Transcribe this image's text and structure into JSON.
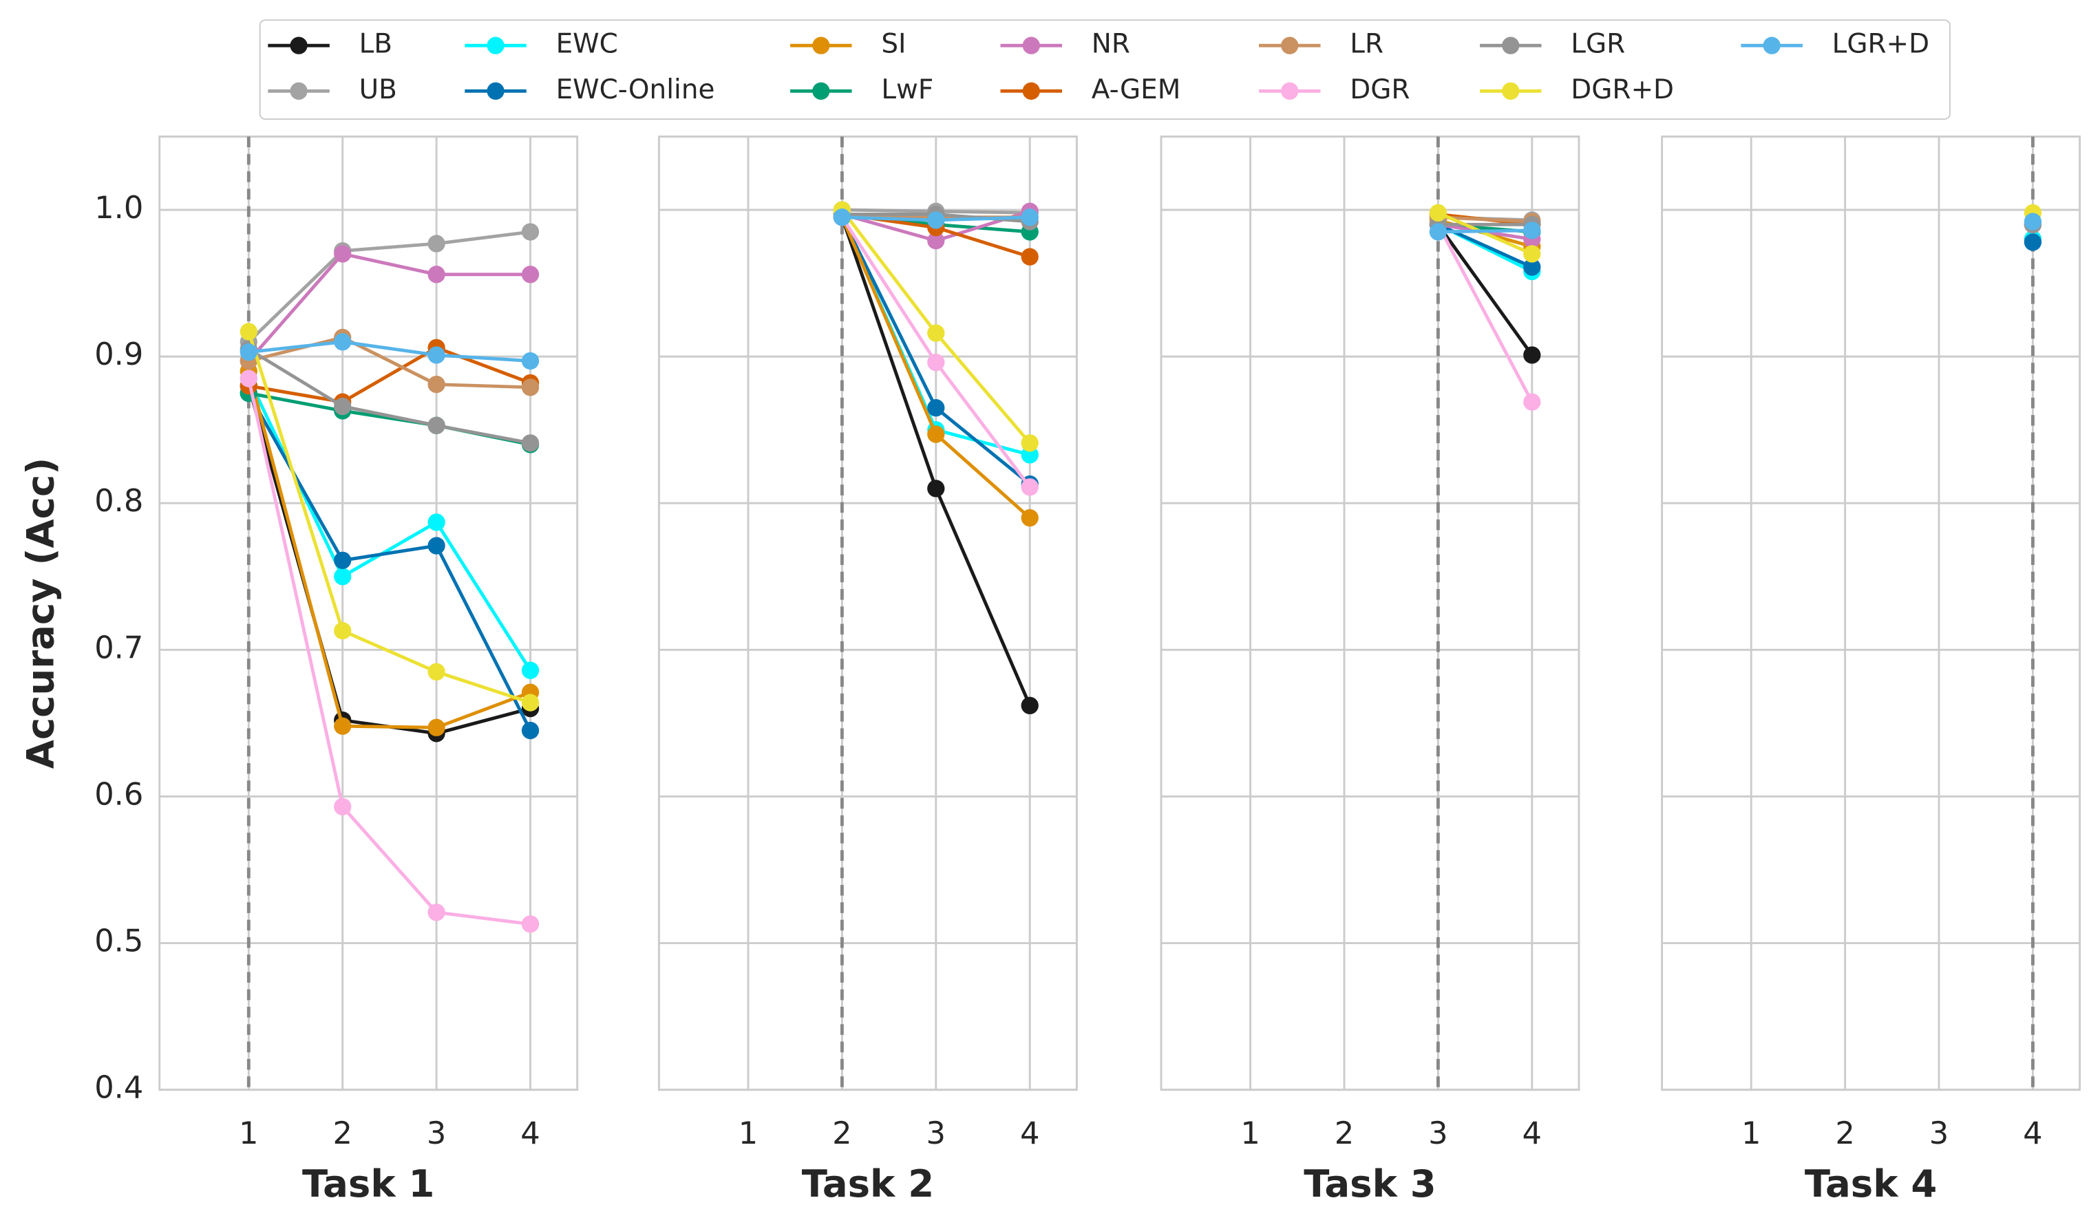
{
  "chart_data": [
    {
      "type": "line",
      "xlabel": "Task 1",
      "ylabel": "Accuracy (Acc)",
      "vline": 1,
      "grid": true,
      "x": [
        1,
        2,
        3,
        4
      ],
      "xlim": [
        0.05,
        4.5
      ],
      "xticks": [
        1,
        2,
        3,
        4
      ],
      "ylim": [
        0.4,
        1.05
      ],
      "yticks": [
        0.4,
        0.5,
        0.6,
        0.7,
        0.8,
        0.9,
        {
          "value": 1,
          "label": "1.0"
        }
      ],
      "series": [
        {
          "name": "LB",
          "color": "#1a1a1a",
          "values": [
            0.88,
            0.652,
            0.643,
            0.66
          ]
        },
        {
          "name": "UB",
          "color": "#a3a3a3",
          "values": [
            0.91,
            0.972,
            0.977,
            0.985
          ]
        },
        {
          "name": "EWC",
          "color": "#00f5ff",
          "values": [
            0.885,
            0.75,
            0.787,
            0.686
          ]
        },
        {
          "name": "EWC-Online",
          "color": "#0072b2",
          "values": [
            0.875,
            0.761,
            0.771,
            0.645
          ]
        },
        {
          "name": "SI",
          "color": "#de8f05",
          "values": [
            0.89,
            0.648,
            0.647,
            0.671
          ]
        },
        {
          "name": "LwF",
          "color": "#029e73",
          "values": [
            0.875,
            0.863,
            0.853,
            0.84
          ]
        },
        {
          "name": "NR",
          "color": "#cc78bc",
          "values": [
            0.897,
            0.97,
            0.956,
            0.956
          ]
        },
        {
          "name": "A-GEM",
          "color": "#d55e00",
          "values": [
            0.88,
            0.869,
            0.906,
            0.882
          ]
        },
        {
          "name": "LR",
          "color": "#ca9161",
          "values": [
            0.897,
            0.913,
            0.881,
            0.879
          ]
        },
        {
          "name": "DGR",
          "color": "#fbafe4",
          "values": [
            0.885,
            0.593,
            0.521,
            0.513
          ]
        },
        {
          "name": "LGR",
          "color": "#949494",
          "values": [
            0.905,
            0.866,
            0.853,
            0.841
          ]
        },
        {
          "name": "DGR+D",
          "color": "#ece133",
          "values": [
            0.917,
            0.713,
            0.685,
            0.664
          ]
        },
        {
          "name": "LGR+D",
          "color": "#56b4e9",
          "values": [
            0.903,
            0.91,
            0.901,
            0.897
          ]
        }
      ]
    },
    {
      "type": "line",
      "xlabel": "Task 2",
      "vline": 2,
      "grid": true,
      "x": [
        1,
        2,
        3,
        4
      ],
      "xlim": [
        0.05,
        4.5
      ],
      "xticks": [
        1,
        2,
        3,
        4
      ],
      "ylim": [
        0.4,
        1.05
      ],
      "series": [
        {
          "name": "LB",
          "color": "#1a1a1a",
          "values": [
            null,
            0.995,
            0.81,
            0.662
          ]
        },
        {
          "name": "UB",
          "color": "#a3a3a3",
          "values": [
            null,
            1.0,
            0.999,
            0.998
          ]
        },
        {
          "name": "EWC",
          "color": "#00f5ff",
          "values": [
            null,
            0.995,
            0.85,
            0.833
          ]
        },
        {
          "name": "EWC-Online",
          "color": "#0072b2",
          "values": [
            null,
            0.995,
            0.865,
            0.813
          ]
        },
        {
          "name": "SI",
          "color": "#de8f05",
          "values": [
            null,
            0.995,
            0.847,
            0.79
          ]
        },
        {
          "name": "LwF",
          "color": "#029e73",
          "values": [
            null,
            0.997,
            0.99,
            0.985
          ]
        },
        {
          "name": "NR",
          "color": "#cc78bc",
          "values": [
            null,
            0.997,
            0.979,
            0.999
          ]
        },
        {
          "name": "A-GEM",
          "color": "#d55e00",
          "values": [
            null,
            0.997,
            0.988,
            0.968
          ]
        },
        {
          "name": "LR",
          "color": "#ca9161",
          "values": [
            null,
            0.997,
            0.995,
            0.995
          ]
        },
        {
          "name": "DGR",
          "color": "#fbafe4",
          "values": [
            null,
            0.995,
            0.896,
            0.811
          ]
        },
        {
          "name": "LGR",
          "color": "#949494",
          "values": [
            null,
            0.997,
            0.997,
            0.992
          ]
        },
        {
          "name": "DGR+D",
          "color": "#ece133",
          "values": [
            null,
            1.0,
            0.916,
            0.841
          ]
        },
        {
          "name": "LGR+D",
          "color": "#56b4e9",
          "values": [
            null,
            0.995,
            0.993,
            0.995
          ]
        }
      ]
    },
    {
      "type": "line",
      "xlabel": "Task 3",
      "vline": 3,
      "grid": true,
      "x": [
        1,
        2,
        3,
        4
      ],
      "xlim": [
        0.05,
        4.5
      ],
      "xticks": [
        1,
        2,
        3,
        4
      ],
      "ylim": [
        0.4,
        1.05
      ],
      "series": [
        {
          "name": "LB",
          "color": "#1a1a1a",
          "values": [
            null,
            null,
            0.99,
            0.901
          ]
        },
        {
          "name": "UB",
          "color": "#a3a3a3",
          "values": [
            null,
            null,
            0.995,
            0.993
          ]
        },
        {
          "name": "EWC",
          "color": "#00f5ff",
          "values": [
            null,
            null,
            0.99,
            0.958
          ]
        },
        {
          "name": "EWC-Online",
          "color": "#0072b2",
          "values": [
            null,
            null,
            0.99,
            0.961
          ]
        },
        {
          "name": "SI",
          "color": "#de8f05",
          "values": [
            null,
            null,
            0.993,
            0.975
          ]
        },
        {
          "name": "LwF",
          "color": "#029e73",
          "values": [
            null,
            null,
            0.99,
            0.985
          ]
        },
        {
          "name": "NR",
          "color": "#cc78bc",
          "values": [
            null,
            null,
            0.99,
            0.98
          ]
        },
        {
          "name": "A-GEM",
          "color": "#d55e00",
          "values": [
            null,
            null,
            0.997,
            0.99
          ]
        },
        {
          "name": "LR",
          "color": "#ca9161",
          "values": [
            null,
            null,
            0.995,
            0.992
          ]
        },
        {
          "name": "DGR",
          "color": "#fbafe4",
          "values": [
            null,
            null,
            0.99,
            0.869
          ]
        },
        {
          "name": "LGR",
          "color": "#949494",
          "values": [
            null,
            null,
            0.99,
            0.99
          ]
        },
        {
          "name": "DGR+D",
          "color": "#ece133",
          "values": [
            null,
            null,
            0.998,
            0.97
          ]
        },
        {
          "name": "LGR+D",
          "color": "#56b4e9",
          "values": [
            null,
            null,
            0.985,
            0.986
          ]
        }
      ]
    },
    {
      "type": "line",
      "xlabel": "Task 4",
      "vline": 4,
      "grid": true,
      "x": [
        1,
        2,
        3,
        4
      ],
      "xlim": [
        0.05,
        4.5
      ],
      "xticks": [
        1,
        2,
        3,
        4
      ],
      "ylim": [
        0.4,
        1.05
      ],
      "series": [
        {
          "name": "LB",
          "color": "#1a1a1a",
          "values": [
            null,
            null,
            null,
            0.98
          ]
        },
        {
          "name": "UB",
          "color": "#a3a3a3",
          "values": [
            null,
            null,
            null,
            0.99
          ]
        },
        {
          "name": "EWC",
          "color": "#00f5ff",
          "values": [
            null,
            null,
            null,
            0.98
          ]
        },
        {
          "name": "EWC-Online",
          "color": "#0072b2",
          "values": [
            null,
            null,
            null,
            0.978
          ]
        },
        {
          "name": "SI",
          "color": "#de8f05",
          "values": [
            null,
            null,
            null,
            0.99
          ]
        },
        {
          "name": "LwF",
          "color": "#029e73",
          "values": [
            null,
            null,
            null,
            0.99
          ]
        },
        {
          "name": "NR",
          "color": "#cc78bc",
          "values": [
            null,
            null,
            null,
            0.99
          ]
        },
        {
          "name": "A-GEM",
          "color": "#d55e00",
          "values": [
            null,
            null,
            null,
            0.99
          ]
        },
        {
          "name": "LR",
          "color": "#ca9161",
          "values": [
            null,
            null,
            null,
            0.99
          ]
        },
        {
          "name": "DGR",
          "color": "#fbafe4",
          "values": [
            null,
            null,
            null,
            0.99
          ]
        },
        {
          "name": "LGR",
          "color": "#949494",
          "values": [
            null,
            null,
            null,
            0.99
          ]
        },
        {
          "name": "DGR+D",
          "color": "#ece133",
          "values": [
            null,
            null,
            null,
            0.998
          ]
        },
        {
          "name": "LGR+D",
          "color": "#56b4e9",
          "values": [
            null,
            null,
            null,
            0.992
          ]
        }
      ]
    }
  ]
}
